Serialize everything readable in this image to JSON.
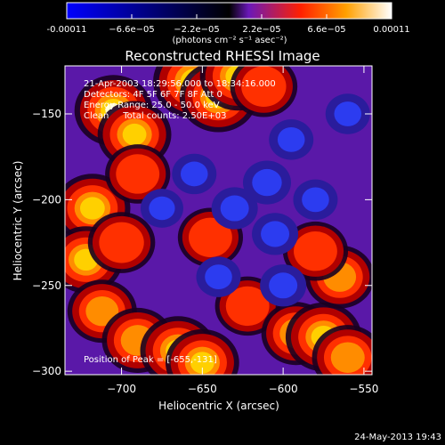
{
  "colorbar": {
    "ticks": [
      "-0.00011",
      "−6.6e−05",
      "−2.2e−05",
      "2.2e−05",
      "6.6e−05",
      "0.00011"
    ],
    "unit_label": "(photons cm⁻² s⁻¹ asec⁻²)",
    "colors": [
      "#0000ff",
      "#000000",
      "#6a18b8",
      "#ff2000",
      "#ffa000",
      "#ffffff"
    ]
  },
  "overlay": {
    "line1": "21-Apr-2003 18:29:56.000 to 18:34:16.000",
    "line2": "Detectors: 4F 5F 6F 7F 8F  Att 0",
    "line3": "Energy Range: 25.0 - 50.0 keV",
    "line4": "Clean     Total counts: 2.50E+03",
    "peak": "Position of Peak = [-655,-131]"
  },
  "timestamp": "24-May-2013 19:43",
  "chart_data": {
    "type": "heatmap",
    "title": "Reconstructed RHESSI Image",
    "xlabel": "Heliocentric X (arcsec)",
    "ylabel": "Heliocentric Y (arcsec)",
    "xlim": [
      -735,
      -545
    ],
    "ylim": [
      -302,
      -122
    ],
    "x_ticks": [
      -700,
      -650,
      -600,
      -550
    ],
    "y_ticks": [
      -300,
      -250,
      -200,
      -150
    ],
    "x_tick_labels": [
      "−700",
      "−650",
      "−600",
      "−550"
    ],
    "y_tick_labels": [
      "−300",
      "−250",
      "−200",
      "−150"
    ],
    "value_range": [
      -0.00011,
      0.00011
    ],
    "blobs": [
      {
        "x": -655,
        "y": -131,
        "v": 0.00011
      },
      {
        "x": -640,
        "y": -140,
        "v": 9e-05
      },
      {
        "x": -628,
        "y": -128,
        "v": 8e-05
      },
      {
        "x": -612,
        "y": -134,
        "v": 4e-05
      },
      {
        "x": -705,
        "y": -148,
        "v": 9e-05
      },
      {
        "x": -692,
        "y": -162,
        "v": 7e-05
      },
      {
        "x": -718,
        "y": -205,
        "v": 8e-05
      },
      {
        "x": -722,
        "y": -235,
        "v": 7e-05
      },
      {
        "x": -700,
        "y": -225,
        "v": 4e-05
      },
      {
        "x": -712,
        "y": -265,
        "v": 5e-05
      },
      {
        "x": -690,
        "y": -282,
        "v": 6e-05
      },
      {
        "x": -665,
        "y": -288,
        "v": 8e-05
      },
      {
        "x": -650,
        "y": -295,
        "v": 7e-05
      },
      {
        "x": -622,
        "y": -262,
        "v": 3e-05
      },
      {
        "x": -592,
        "y": -278,
        "v": 5e-05
      },
      {
        "x": -575,
        "y": -280,
        "v": 8e-05
      },
      {
        "x": -560,
        "y": -292,
        "v": 6e-05
      },
      {
        "x": -565,
        "y": -245,
        "v": 5e-05
      },
      {
        "x": -580,
        "y": -230,
        "v": 3e-05
      },
      {
        "x": -645,
        "y": -222,
        "v": 3e-05
      },
      {
        "x": -690,
        "y": -185,
        "v": 3e-05
      },
      {
        "x": -655,
        "y": -185,
        "v": -3e-05
      },
      {
        "x": -630,
        "y": -205,
        "v": -4e-05
      },
      {
        "x": -610,
        "y": -190,
        "v": -5e-05
      },
      {
        "x": -595,
        "y": -165,
        "v": -3e-05
      },
      {
        "x": -605,
        "y": -220,
        "v": -4e-05
      },
      {
        "x": -580,
        "y": -200,
        "v": -3e-05
      },
      {
        "x": -560,
        "y": -150,
        "v": -3e-05
      },
      {
        "x": -640,
        "y": -245,
        "v": -3e-05
      },
      {
        "x": -600,
        "y": -250,
        "v": -4e-05
      },
      {
        "x": -675,
        "y": -205,
        "v": -2e-05
      }
    ]
  }
}
